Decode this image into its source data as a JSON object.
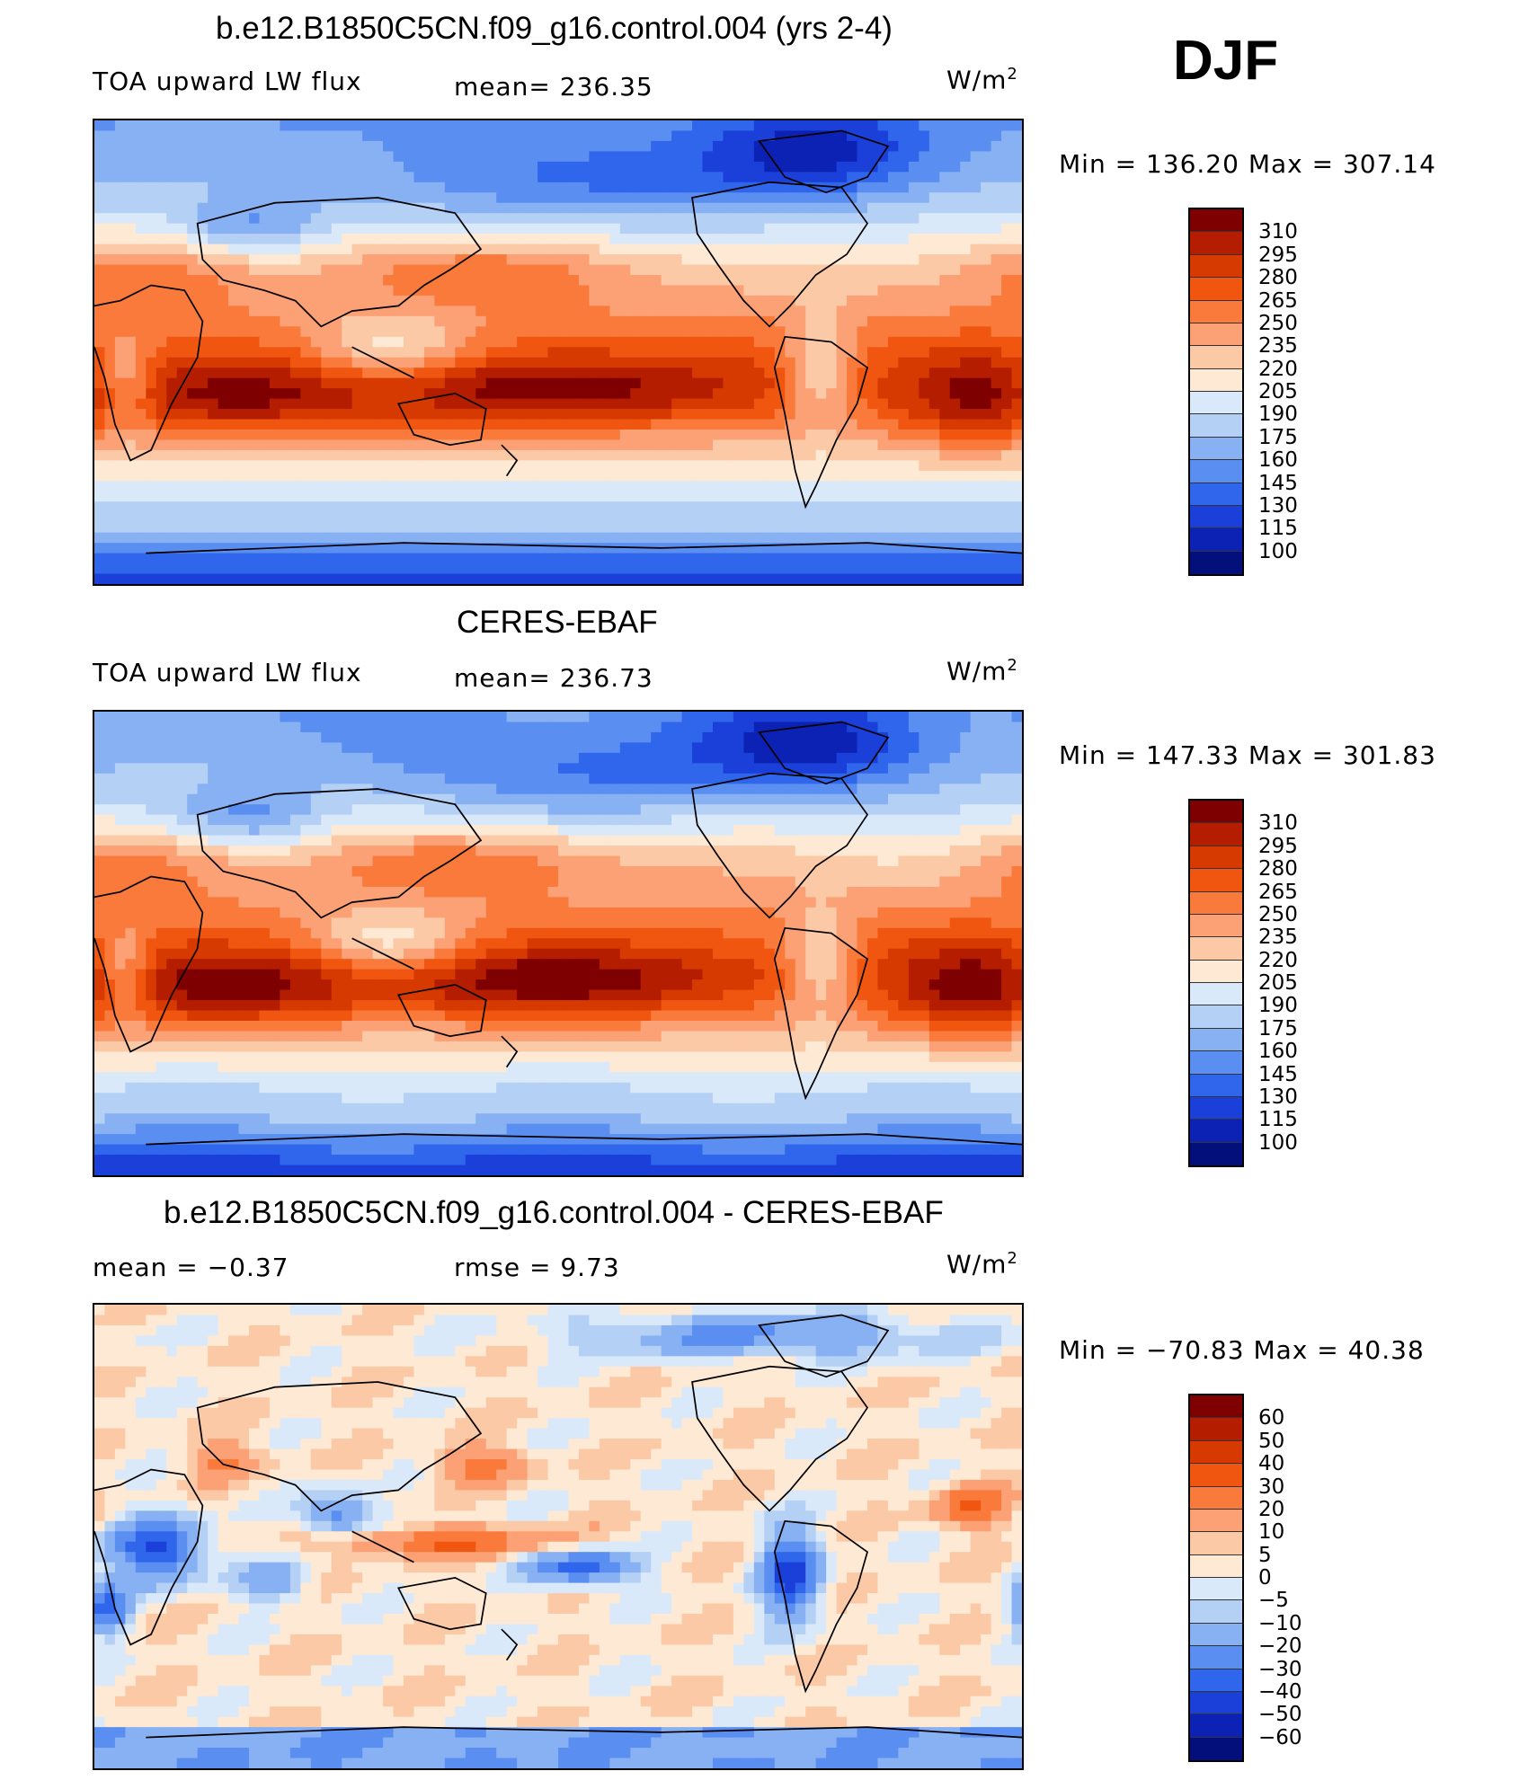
{
  "season": "DJF",
  "units_text": "W/m",
  "units_sup": "2",
  "panels": [
    {
      "title": "b.e12.B1850C5CN.f09_g16.control.004 (yrs 2-4)",
      "left_label": "TOA upward LW flux",
      "stat_label": "mean= 236.35",
      "minmax": "Min  =  136.20  Max  =  307.14",
      "colorbar": {
        "ticks": [
          "310",
          "295",
          "280",
          "265",
          "250",
          "235",
          "220",
          "205",
          "190",
          "175",
          "160",
          "145",
          "130",
          "115",
          "100"
        ],
        "colors": [
          "#7f0000",
          "#b51d00",
          "#d63a00",
          "#f0560f",
          "#fa7a3c",
          "#fba175",
          "#fcc9a6",
          "#fde9d4",
          "#dae9f9",
          "#b4d0f5",
          "#87b1f2",
          "#5a8ef0",
          "#2f66eb",
          "#1a40d9",
          "#0c22b5",
          "#03107c"
        ]
      },
      "field": "model"
    },
    {
      "title": "CERES-EBAF",
      "left_label": "TOA upward LW flux",
      "stat_label": "mean= 236.73",
      "minmax": "Min  =  147.33  Max  =  301.83",
      "colorbar": {
        "ticks": [
          "310",
          "295",
          "280",
          "265",
          "250",
          "235",
          "220",
          "205",
          "190",
          "175",
          "160",
          "145",
          "130",
          "115",
          "100"
        ],
        "colors": [
          "#7f0000",
          "#b51d00",
          "#d63a00",
          "#f0560f",
          "#fa7a3c",
          "#fba175",
          "#fcc9a6",
          "#fde9d4",
          "#dae9f9",
          "#b4d0f5",
          "#87b1f2",
          "#5a8ef0",
          "#2f66eb",
          "#1a40d9",
          "#0c22b5",
          "#03107c"
        ]
      },
      "field": "obs"
    },
    {
      "title": "b.e12.B1850C5CN.f09_g16.control.004 - CERES-EBAF",
      "left_label": "mean =    −0.37",
      "stat_label": "rmse =     9.73",
      "minmax": "Min  =  −70.83  Max  =    40.38",
      "colorbar": {
        "ticks": [
          "60",
          "50",
          "40",
          "30",
          "20",
          "10",
          "5",
          "0",
          "−5",
          "−10",
          "−20",
          "−30",
          "−40",
          "−50",
          "−60"
        ],
        "colors": [
          "#7f0000",
          "#b51d00",
          "#d63a00",
          "#f0560f",
          "#fa7a3c",
          "#fba175",
          "#fcc9a6",
          "#fde9d4",
          "#dae9f9",
          "#b4d0f5",
          "#87b1f2",
          "#5a8ef0",
          "#2f66eb",
          "#1a40d9",
          "#0c22b5",
          "#03107c"
        ]
      },
      "field": "diff"
    }
  ]
}
